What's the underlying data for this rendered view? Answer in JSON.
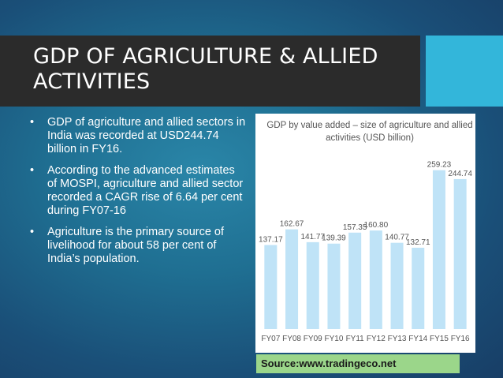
{
  "slide": {
    "title": "GDP OF AGRICULTURE & ALLIED ACTIVITIES",
    "bullets": [
      "GDP of agriculture and allied sectors in India was recorded at USD244.74 billion in FY16.",
      "According to the advanced estimates of MOSPI, agriculture and allied sector recorded a CAGR rise of 6.64 per cent during FY07-16",
      "Agriculture is the primary source of livelihood for about 58 per cent of India’s population."
    ],
    "bullet_glyph": "•",
    "source": "Source:www.tradingeco.net",
    "colors": {
      "title_bar": "#2b2b2b",
      "accent": "#33b6da",
      "bar": "#bfe3f7",
      "source_bg": "#9bd68a"
    }
  },
  "chart_data": {
    "type": "bar",
    "title_lines": [
      "GDP by value added – size of agriculture and allied",
      "activities (USD billion)"
    ],
    "categories": [
      "FY07",
      "FY08",
      "FY09",
      "FY10",
      "FY11",
      "FY12",
      "FY13",
      "FY14",
      "FY15",
      "FY16"
    ],
    "values": [
      137.17,
      162.67,
      141.77,
      139.39,
      157.35,
      160.8,
      140.77,
      132.71,
      259.23,
      244.74
    ],
    "value_labels": [
      "137.17",
      "162.67",
      "141.77",
      "139.39",
      "157.35",
      "160.80",
      "140.77",
      "132.71",
      "259.23",
      "244.74"
    ],
    "ylim": [
      0,
      300
    ],
    "grid": false
  }
}
